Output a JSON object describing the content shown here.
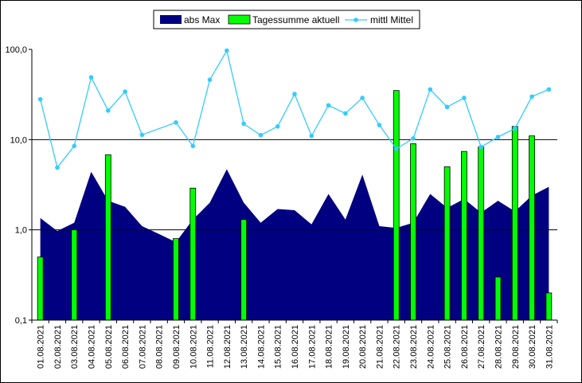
{
  "chart_data": {
    "type": "bar",
    "y_scale": "log",
    "ylim": [
      0.1,
      100
    ],
    "y_ticks": [
      {
        "value": 0.1,
        "label": "0,1"
      },
      {
        "value": 1,
        "label": "1,0"
      },
      {
        "value": 10,
        "label": "10,0"
      },
      {
        "value": 100,
        "label": "100,0"
      }
    ],
    "grid": "horizontal at 1 and 10",
    "legend_position": "top",
    "categories": [
      "01.08.2021",
      "02.08.2021",
      "03.08.2021",
      "04.08.2021",
      "05.08.2021",
      "06.08.2021",
      "07.08.2021",
      "08.08.2021",
      "09.08.2021",
      "10.08.2021",
      "11.08.2021",
      "12.08.2021",
      "13.08.2021",
      "14.08.2021",
      "15.08.2021",
      "16.08.2021",
      "17.08.2021",
      "18.08.2021",
      "19.08.2021",
      "20.08.2021",
      "21.08.2021",
      "22.08.2021",
      "23.08.2021",
      "24.08.2021",
      "25.08.2021",
      "26.08.2021",
      "27.08.2021",
      "28.08.2021",
      "29.08.2021",
      "30.08.2021",
      "31.08.2021"
    ],
    "series": [
      {
        "name": "abs Max",
        "type": "area",
        "color": "#000080",
        "values": [
          1.35,
          0.97,
          1.2,
          4.4,
          2.1,
          1.8,
          1.1,
          0.9,
          0.73,
          1.3,
          2.0,
          4.7,
          2.0,
          1.2,
          1.7,
          1.65,
          1.15,
          2.5,
          1.3,
          4.1,
          1.1,
          1.05,
          1.2,
          2.5,
          1.75,
          2.2,
          1.55,
          2.1,
          1.6,
          2.4,
          3.0
        ]
      },
      {
        "name": "Tagessumme aktuell",
        "type": "bar",
        "color": "#00ff00",
        "values": [
          0.5,
          null,
          1.0,
          null,
          6.8,
          null,
          null,
          null,
          0.8,
          2.9,
          null,
          null,
          1.3,
          null,
          null,
          null,
          null,
          null,
          null,
          null,
          null,
          35,
          9.0,
          null,
          5.0,
          7.4,
          8.3,
          0.3,
          14,
          11,
          0.2
        ]
      },
      {
        "name": "mittl Mittel",
        "type": "line",
        "color": "#33ccff",
        "values": [
          28,
          4.9,
          8.5,
          49,
          21,
          34,
          11.3,
          null,
          15.5,
          8.5,
          46,
          97,
          15,
          11.2,
          14,
          32,
          11,
          24,
          19.5,
          29,
          14.5,
          7.9,
          10.3,
          36,
          23,
          29,
          8.3,
          10.7,
          13.3,
          30,
          36
        ]
      }
    ]
  }
}
